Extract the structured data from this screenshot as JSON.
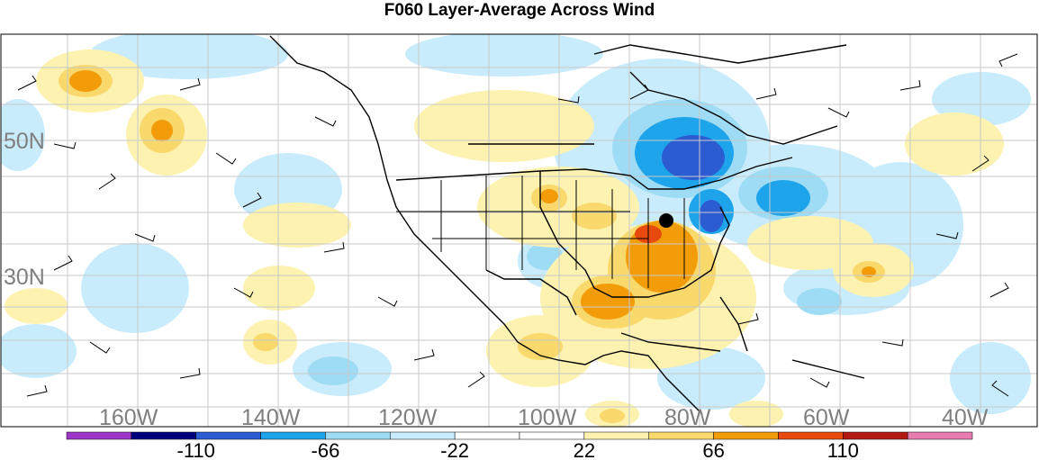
{
  "title": "F060 Layer-Average Across Wind",
  "lat_labels": [
    "50N",
    "30N"
  ],
  "lon_labels": [
    "160W",
    "140W",
    "120W",
    "100W",
    "80W",
    "60W",
    "40W"
  ],
  "colorbar": {
    "colors": [
      "#9c36c8",
      "#00007c",
      "#2c5cd2",
      "#1ea4ea",
      "#9edcf6",
      "#c8ecfc",
      "#ffffff",
      "#ffffff",
      "#fdf2b0",
      "#f9d86c",
      "#f39c0a",
      "#e84a0e",
      "#b41a14",
      "#e87cae"
    ],
    "tick_labels": [
      "-110",
      "-66",
      "-22",
      "22",
      "66",
      "110"
    ]
  }
}
